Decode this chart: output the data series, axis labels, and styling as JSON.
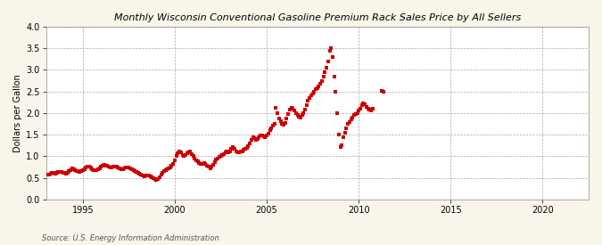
{
  "title": "Monthly Wisconsin Conventional Gasoline Premium Rack Sales Price by All Sellers",
  "ylabel": "Dollars per Gallon",
  "source": "Source: U.S. Energy Information Administration",
  "xlim": [
    1993.0,
    2022.5
  ],
  "ylim": [
    0.0,
    4.0
  ],
  "xticks": [
    1995,
    2000,
    2005,
    2010,
    2015,
    2020
  ],
  "yticks": [
    0.0,
    0.5,
    1.0,
    1.5,
    2.0,
    2.5,
    3.0,
    3.5,
    4.0
  ],
  "background_color": "#faf5eb",
  "plot_bg_color": "#ffffff",
  "marker_color": "#cc0000",
  "marker": "s",
  "marker_size": 2.5,
  "data": [
    [
      1993.08,
      0.57
    ],
    [
      1993.17,
      0.58
    ],
    [
      1993.25,
      0.6
    ],
    [
      1993.33,
      0.62
    ],
    [
      1993.42,
      0.61
    ],
    [
      1993.5,
      0.6
    ],
    [
      1993.58,
      0.62
    ],
    [
      1993.67,
      0.63
    ],
    [
      1993.75,
      0.64
    ],
    [
      1993.83,
      0.63
    ],
    [
      1993.92,
      0.62
    ],
    [
      1994.0,
      0.61
    ],
    [
      1994.08,
      0.6
    ],
    [
      1994.17,
      0.62
    ],
    [
      1994.25,
      0.65
    ],
    [
      1994.33,
      0.68
    ],
    [
      1994.42,
      0.72
    ],
    [
      1994.5,
      0.7
    ],
    [
      1994.58,
      0.68
    ],
    [
      1994.67,
      0.66
    ],
    [
      1994.75,
      0.65
    ],
    [
      1994.83,
      0.64
    ],
    [
      1994.92,
      0.65
    ],
    [
      1995.0,
      0.67
    ],
    [
      1995.08,
      0.7
    ],
    [
      1995.17,
      0.73
    ],
    [
      1995.25,
      0.76
    ],
    [
      1995.33,
      0.75
    ],
    [
      1995.42,
      0.73
    ],
    [
      1995.5,
      0.7
    ],
    [
      1995.58,
      0.68
    ],
    [
      1995.67,
      0.67
    ],
    [
      1995.75,
      0.68
    ],
    [
      1995.83,
      0.7
    ],
    [
      1995.92,
      0.72
    ],
    [
      1996.0,
      0.75
    ],
    [
      1996.08,
      0.78
    ],
    [
      1996.17,
      0.8
    ],
    [
      1996.25,
      0.79
    ],
    [
      1996.33,
      0.77
    ],
    [
      1996.42,
      0.75
    ],
    [
      1996.5,
      0.73
    ],
    [
      1996.58,
      0.74
    ],
    [
      1996.67,
      0.75
    ],
    [
      1996.75,
      0.76
    ],
    [
      1996.83,
      0.75
    ],
    [
      1996.92,
      0.73
    ],
    [
      1997.0,
      0.72
    ],
    [
      1997.08,
      0.7
    ],
    [
      1997.17,
      0.69
    ],
    [
      1997.25,
      0.71
    ],
    [
      1997.33,
      0.73
    ],
    [
      1997.42,
      0.74
    ],
    [
      1997.5,
      0.73
    ],
    [
      1997.58,
      0.71
    ],
    [
      1997.67,
      0.69
    ],
    [
      1997.75,
      0.67
    ],
    [
      1997.83,
      0.65
    ],
    [
      1997.92,
      0.63
    ],
    [
      1998.0,
      0.61
    ],
    [
      1998.08,
      0.59
    ],
    [
      1998.17,
      0.57
    ],
    [
      1998.25,
      0.55
    ],
    [
      1998.33,
      0.54
    ],
    [
      1998.42,
      0.55
    ],
    [
      1998.5,
      0.56
    ],
    [
      1998.58,
      0.55
    ],
    [
      1998.67,
      0.53
    ],
    [
      1998.75,
      0.51
    ],
    [
      1998.83,
      0.49
    ],
    [
      1998.92,
      0.47
    ],
    [
      1999.0,
      0.46
    ],
    [
      1999.08,
      0.48
    ],
    [
      1999.17,
      0.52
    ],
    [
      1999.25,
      0.57
    ],
    [
      1999.33,
      0.62
    ],
    [
      1999.42,
      0.66
    ],
    [
      1999.5,
      0.68
    ],
    [
      1999.58,
      0.7
    ],
    [
      1999.67,
      0.72
    ],
    [
      1999.75,
      0.74
    ],
    [
      1999.83,
      0.78
    ],
    [
      1999.92,
      0.83
    ],
    [
      2000.0,
      0.9
    ],
    [
      2000.08,
      1.0
    ],
    [
      2000.17,
      1.07
    ],
    [
      2000.25,
      1.1
    ],
    [
      2000.33,
      1.08
    ],
    [
      2000.42,
      1.02
    ],
    [
      2000.5,
      1.0
    ],
    [
      2000.58,
      1.02
    ],
    [
      2000.67,
      1.06
    ],
    [
      2000.75,
      1.08
    ],
    [
      2000.83,
      1.1
    ],
    [
      2000.92,
      1.05
    ],
    [
      2001.0,
      1.0
    ],
    [
      2001.08,
      0.95
    ],
    [
      2001.17,
      0.9
    ],
    [
      2001.25,
      0.88
    ],
    [
      2001.33,
      0.85
    ],
    [
      2001.42,
      0.82
    ],
    [
      2001.5,
      0.83
    ],
    [
      2001.58,
      0.85
    ],
    [
      2001.67,
      0.82
    ],
    [
      2001.75,
      0.78
    ],
    [
      2001.83,
      0.75
    ],
    [
      2001.92,
      0.72
    ],
    [
      2002.0,
      0.75
    ],
    [
      2002.08,
      0.8
    ],
    [
      2002.17,
      0.87
    ],
    [
      2002.25,
      0.92
    ],
    [
      2002.33,
      0.95
    ],
    [
      2002.42,
      0.98
    ],
    [
      2002.5,
      1.0
    ],
    [
      2002.58,
      1.02
    ],
    [
      2002.67,
      1.05
    ],
    [
      2002.75,
      1.08
    ],
    [
      2002.83,
      1.1
    ],
    [
      2002.92,
      1.08
    ],
    [
      2003.0,
      1.1
    ],
    [
      2003.08,
      1.18
    ],
    [
      2003.17,
      1.22
    ],
    [
      2003.25,
      1.18
    ],
    [
      2003.33,
      1.12
    ],
    [
      2003.42,
      1.08
    ],
    [
      2003.5,
      1.08
    ],
    [
      2003.58,
      1.1
    ],
    [
      2003.67,
      1.12
    ],
    [
      2003.75,
      1.15
    ],
    [
      2003.83,
      1.18
    ],
    [
      2003.92,
      1.2
    ],
    [
      2004.0,
      1.24
    ],
    [
      2004.08,
      1.3
    ],
    [
      2004.17,
      1.38
    ],
    [
      2004.25,
      1.45
    ],
    [
      2004.33,
      1.42
    ],
    [
      2004.42,
      1.38
    ],
    [
      2004.5,
      1.4
    ],
    [
      2004.58,
      1.45
    ],
    [
      2004.67,
      1.48
    ],
    [
      2004.75,
      1.48
    ],
    [
      2004.83,
      1.46
    ],
    [
      2004.92,
      1.44
    ],
    [
      2005.0,
      1.48
    ],
    [
      2005.08,
      1.53
    ],
    [
      2005.17,
      1.6
    ],
    [
      2005.25,
      1.65
    ],
    [
      2005.33,
      1.7
    ],
    [
      2005.42,
      1.75
    ],
    [
      2005.5,
      2.12
    ],
    [
      2005.58,
      2.0
    ],
    [
      2005.67,
      1.88
    ],
    [
      2005.75,
      1.82
    ],
    [
      2005.83,
      1.75
    ],
    [
      2005.92,
      1.72
    ],
    [
      2006.0,
      1.78
    ],
    [
      2006.08,
      1.88
    ],
    [
      2006.17,
      1.98
    ],
    [
      2006.25,
      2.08
    ],
    [
      2006.33,
      2.12
    ],
    [
      2006.42,
      2.1
    ],
    [
      2006.5,
      2.05
    ],
    [
      2006.58,
      2.0
    ],
    [
      2006.67,
      1.95
    ],
    [
      2006.75,
      1.92
    ],
    [
      2006.83,
      1.9
    ],
    [
      2006.92,
      1.95
    ],
    [
      2007.0,
      2.0
    ],
    [
      2007.08,
      2.08
    ],
    [
      2007.17,
      2.18
    ],
    [
      2007.25,
      2.28
    ],
    [
      2007.33,
      2.35
    ],
    [
      2007.42,
      2.4
    ],
    [
      2007.5,
      2.45
    ],
    [
      2007.58,
      2.5
    ],
    [
      2007.67,
      2.55
    ],
    [
      2007.75,
      2.58
    ],
    [
      2007.83,
      2.62
    ],
    [
      2007.92,
      2.68
    ],
    [
      2008.0,
      2.75
    ],
    [
      2008.08,
      2.85
    ],
    [
      2008.17,
      2.95
    ],
    [
      2008.25,
      3.05
    ],
    [
      2008.33,
      3.2
    ],
    [
      2008.42,
      3.45
    ],
    [
      2008.5,
      3.5
    ],
    [
      2008.58,
      3.3
    ],
    [
      2008.67,
      2.85
    ],
    [
      2008.75,
      2.5
    ],
    [
      2008.83,
      2.0
    ],
    [
      2008.92,
      1.5
    ],
    [
      2009.0,
      1.22
    ],
    [
      2009.08,
      1.25
    ],
    [
      2009.17,
      1.45
    ],
    [
      2009.25,
      1.55
    ],
    [
      2009.33,
      1.65
    ],
    [
      2009.42,
      1.75
    ],
    [
      2009.5,
      1.8
    ],
    [
      2009.58,
      1.85
    ],
    [
      2009.67,
      1.9
    ],
    [
      2009.75,
      1.95
    ],
    [
      2009.83,
      1.98
    ],
    [
      2009.92,
      2.0
    ],
    [
      2010.0,
      2.05
    ],
    [
      2010.08,
      2.1
    ],
    [
      2010.17,
      2.18
    ],
    [
      2010.25,
      2.22
    ],
    [
      2010.33,
      2.2
    ],
    [
      2010.42,
      2.15
    ],
    [
      2010.5,
      2.1
    ],
    [
      2010.58,
      2.08
    ],
    [
      2010.67,
      2.05
    ],
    [
      2010.75,
      2.1
    ],
    [
      2011.25,
      2.52
    ],
    [
      2011.33,
      2.5
    ]
  ]
}
